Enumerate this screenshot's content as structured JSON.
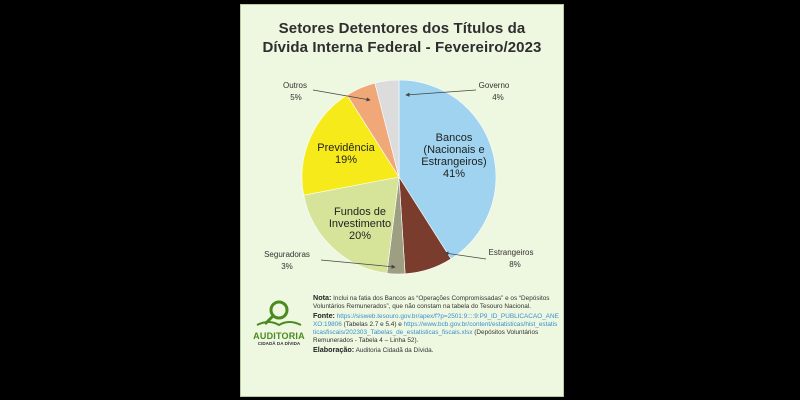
{
  "title_line1": "Setores Detentores dos Títulos da",
  "title_line2": "Dívida Interna Federal - Fevereiro/2023",
  "chart_data": {
    "type": "pie",
    "title": "Setores Detentores dos Títulos da Dívida Interna Federal - Fevereiro/2023",
    "slices": [
      {
        "name": "Bancos (Nacionais e Estrangeiros)",
        "label_lines": [
          "Bancos",
          "(Nacionais e",
          "Estrangeiros)"
        ],
        "value": 41,
        "pct_label": "41%",
        "color": "#9fd3ef",
        "label_pos": "inside"
      },
      {
        "name": "Estrangeiros",
        "label_lines": [
          "Estrangeiros"
        ],
        "value": 8,
        "pct_label": "8%",
        "color": "#7a3d2d",
        "label_pos": "outside"
      },
      {
        "name": "Seguradoras",
        "label_lines": [
          "Seguradoras"
        ],
        "value": 3,
        "pct_label": "3%",
        "color": "#9e9e82",
        "label_pos": "outside"
      },
      {
        "name": "Fundos de Investimento",
        "label_lines": [
          "Fundos de",
          "Investimento"
        ],
        "value": 20,
        "pct_label": "20%",
        "color": "#d6e49a",
        "label_pos": "inside"
      },
      {
        "name": "Previdência",
        "label_lines": [
          "Previdência"
        ],
        "value": 19,
        "pct_label": "19%",
        "color": "#f7ea1a",
        "label_pos": "inside"
      },
      {
        "name": "Outros",
        "label_lines": [
          "Outros"
        ],
        "value": 5,
        "pct_label": "5%",
        "color": "#f0a878",
        "label_pos": "outside"
      },
      {
        "name": "Governo",
        "label_lines": [
          "Governo"
        ],
        "value": 4,
        "pct_label": "4%",
        "color": "#dcdcdc",
        "label_pos": "outside"
      }
    ]
  },
  "logo": {
    "line1": "AUDITORIA",
    "line2": "CIDADÃ DA DÍVIDA",
    "color": "#4a8a1e"
  },
  "notes": {
    "nota_label": "Nota:",
    "nota_text": "Inclui na fatia dos Bancos as “Operações Compromissadas” e os “Depósitos Voluntários Remunerados”, que não constam na tabela do Tesouro Nacional.",
    "fonte_label": "Fonte:",
    "fonte_link1": "https://sisweb.tesouro.gov.br/apex/f?p=2501:9::::9:P9_ID_PUBLICACAO_ANEXO:19806",
    "fonte_text1": "(Tabelas 2.7 e 5.4)   e",
    "fonte_link2": "https://www.bcb.gov.br/content/estatisticas/hist_estatisticasfiscais/202303_Tabelas_de_estatisticas_fiscais.xlsx",
    "fonte_text2": "(Depósitos Voluntários Remunerados - Tabela 4 – Linha 52).",
    "elab_label": "Elaboração:",
    "elab_text": "Auditoria Cidadã da Dívida."
  }
}
